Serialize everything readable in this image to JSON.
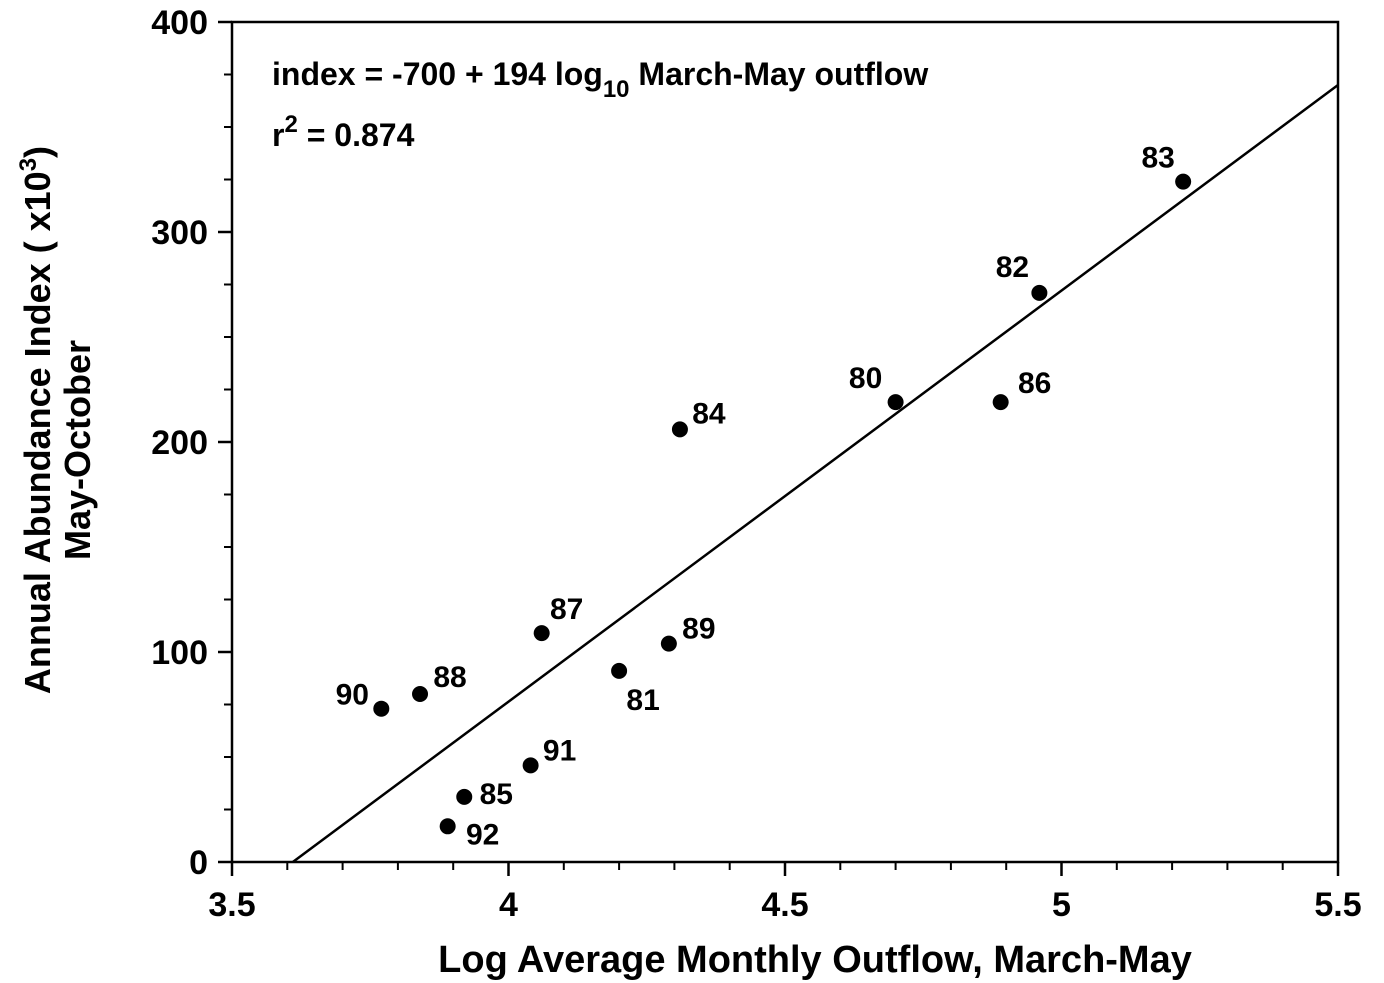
{
  "chart_data": {
    "type": "scatter",
    "annotation": {
      "line1": [
        "index = -700 + 194 log",
        "10",
        " March-May outflow"
      ],
      "line2": [
        "r",
        "2",
        " = 0.874"
      ]
    },
    "x_label": "Log Average Monthly Outflow, March-May",
    "y_label": {
      "line1": [
        "Annual Abundance Index ( x10",
        "3",
        ")"
      ],
      "line2": "May-October"
    },
    "x": [
      3.77,
      3.84,
      4.06,
      4.2,
      4.29,
      4.31,
      4.7,
      4.89,
      4.96,
      5.22,
      4.04,
      3.92,
      3.89
    ],
    "values": [
      73,
      80,
      109,
      91,
      104,
      206,
      219,
      219,
      271,
      324,
      46,
      31,
      17
    ],
    "labels": [
      "90",
      "88",
      "87",
      "81",
      "89",
      "84",
      "80",
      "86",
      "82",
      "83",
      "91",
      "85",
      "92"
    ],
    "color": "#000000",
    "fit_line": {
      "x": [
        3.61,
        5.5
      ],
      "y": [
        0,
        370
      ]
    },
    "xlim": [
      3.5,
      5.5
    ],
    "ylim": [
      0,
      400
    ],
    "xticks": [
      3.5,
      4,
      4.5,
      5,
      5.5
    ],
    "yticks": [
      0,
      100,
      200,
      300,
      400
    ],
    "xticks_minor": [
      3.6,
      3.7,
      3.8,
      3.9,
      4.1,
      4.2,
      4.3,
      4.4,
      4.6,
      4.7,
      4.8,
      4.9,
      5.1,
      5.2,
      5.3,
      5.4
    ],
    "yticks_minor": [
      25,
      50,
      75,
      125,
      150,
      175,
      225,
      250,
      275,
      325,
      350,
      375
    ]
  }
}
